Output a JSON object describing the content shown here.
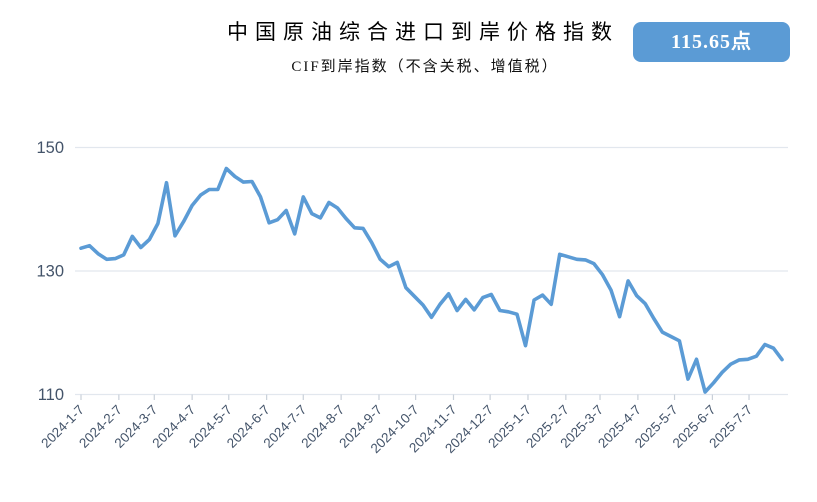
{
  "header": {
    "title": "中国原油综合进口到岸价格指数",
    "subtitle": "CIF到岸指数（不含关税、增值税）",
    "badge_value": "115.65点"
  },
  "colors": {
    "line": "#5B9BD5",
    "badge_bg": "#5B9BD5",
    "badge_text": "#FFFFFF",
    "grid": "#E2E7EE",
    "axis_label": "#44546A",
    "tick_mark": "#C9D0D9",
    "title_text": "#000000"
  },
  "chart_data": {
    "type": "line",
    "title": "中国原油综合进口到岸价格指数",
    "subtitle": "CIF到岸指数（不含关税、增值税）",
    "latest_value": 115.65,
    "unit": "点",
    "ylim": [
      110,
      150
    ],
    "grid": "horizontal-only",
    "legend": "none",
    "yticks": [
      {
        "value": 110,
        "label": "110"
      },
      {
        "value": 130,
        "label": "130"
      },
      {
        "value": 150,
        "label": "150"
      }
    ],
    "x_ticks": [
      {
        "date": "2024-01-07",
        "label": "2024-1-7"
      },
      {
        "date": "2024-02-07",
        "label": "2024-2-7"
      },
      {
        "date": "2024-03-07",
        "label": "2024-3-7"
      },
      {
        "date": "2024-04-07",
        "label": "2024-4-7"
      },
      {
        "date": "2024-05-07",
        "label": "2024-5-7"
      },
      {
        "date": "2024-06-07",
        "label": "2024-6-7"
      },
      {
        "date": "2024-07-07",
        "label": "2024-7-7"
      },
      {
        "date": "2024-08-07",
        "label": "2024-8-7"
      },
      {
        "date": "2024-09-07",
        "label": "2024-9-7"
      },
      {
        "date": "2024-10-07",
        "label": "2024-10-7"
      },
      {
        "date": "2024-11-07",
        "label": "2024-11-7"
      },
      {
        "date": "2024-12-07",
        "label": "2024-12-7"
      },
      {
        "date": "2025-01-07",
        "label": "2025-1-7"
      },
      {
        "date": "2025-02-07",
        "label": "2025-2-7"
      },
      {
        "date": "2025-03-07",
        "label": "2025-3-7"
      },
      {
        "date": "2025-04-07",
        "label": "2025-4-7"
      },
      {
        "date": "2025-05-07",
        "label": "2025-5-7"
      },
      {
        "date": "2025-06-07",
        "label": "2025-6-7"
      },
      {
        "date": "2025-07-07",
        "label": "2025-7-7"
      }
    ],
    "series": [
      {
        "name": "CIF到岸指数（不含关税、增值税）",
        "points": [
          [
            "2024-01-07",
            133.7
          ],
          [
            "2024-01-14",
            134.1
          ],
          [
            "2024-01-21",
            132.8
          ],
          [
            "2024-01-28",
            131.9
          ],
          [
            "2024-02-04",
            132.0
          ],
          [
            "2024-02-11",
            132.6
          ],
          [
            "2024-02-18",
            135.6
          ],
          [
            "2024-02-25",
            133.8
          ],
          [
            "2024-03-03",
            135.1
          ],
          [
            "2024-03-10",
            137.7
          ],
          [
            "2024-03-17",
            144.3
          ],
          [
            "2024-03-24",
            135.7
          ],
          [
            "2024-03-31",
            138.0
          ],
          [
            "2024-04-07",
            140.6
          ],
          [
            "2024-04-14",
            142.3
          ],
          [
            "2024-04-21",
            143.2
          ],
          [
            "2024-04-28",
            143.2
          ],
          [
            "2024-05-05",
            146.6
          ],
          [
            "2024-05-12",
            145.3
          ],
          [
            "2024-05-19",
            144.4
          ],
          [
            "2024-05-26",
            144.5
          ],
          [
            "2024-06-02",
            142.0
          ],
          [
            "2024-06-09",
            137.8
          ],
          [
            "2024-06-16",
            138.3
          ],
          [
            "2024-06-23",
            139.8
          ],
          [
            "2024-06-30",
            136.0
          ],
          [
            "2024-07-07",
            142.0
          ],
          [
            "2024-07-14",
            139.3
          ],
          [
            "2024-07-21",
            138.6
          ],
          [
            "2024-07-28",
            141.1
          ],
          [
            "2024-08-04",
            140.2
          ],
          [
            "2024-08-11",
            138.5
          ],
          [
            "2024-08-18",
            137.0
          ],
          [
            "2024-08-25",
            136.9
          ],
          [
            "2024-09-01",
            134.6
          ],
          [
            "2024-09-08",
            131.9
          ],
          [
            "2024-09-15",
            130.7
          ],
          [
            "2024-09-22",
            131.4
          ],
          [
            "2024-09-29",
            127.3
          ],
          [
            "2024-10-06",
            125.9
          ],
          [
            "2024-10-13",
            124.5
          ],
          [
            "2024-10-20",
            122.5
          ],
          [
            "2024-10-27",
            124.6
          ],
          [
            "2024-11-03",
            126.3
          ],
          [
            "2024-11-10",
            123.6
          ],
          [
            "2024-11-17",
            125.4
          ],
          [
            "2024-11-24",
            123.7
          ],
          [
            "2024-12-01",
            125.7
          ],
          [
            "2024-12-08",
            126.2
          ],
          [
            "2024-12-15",
            123.6
          ],
          [
            "2024-12-22",
            123.4
          ],
          [
            "2024-12-29",
            123.0
          ],
          [
            "2025-01-05",
            117.9
          ],
          [
            "2025-01-12",
            125.3
          ],
          [
            "2025-01-19",
            126.1
          ],
          [
            "2025-01-26",
            124.6
          ],
          [
            "2025-02-02",
            132.7
          ],
          [
            "2025-02-09",
            132.3
          ],
          [
            "2025-02-16",
            131.9
          ],
          [
            "2025-02-23",
            131.8
          ],
          [
            "2025-03-02",
            131.2
          ],
          [
            "2025-03-09",
            129.4
          ],
          [
            "2025-03-16",
            126.9
          ],
          [
            "2025-03-23",
            122.6
          ],
          [
            "2025-03-30",
            128.4
          ],
          [
            "2025-04-06",
            126.0
          ],
          [
            "2025-04-13",
            124.7
          ],
          [
            "2025-04-20",
            122.3
          ],
          [
            "2025-04-27",
            120.1
          ],
          [
            "2025-05-04",
            119.4
          ],
          [
            "2025-05-11",
            118.7
          ],
          [
            "2025-05-18",
            112.5
          ],
          [
            "2025-05-25",
            115.7
          ],
          [
            "2025-06-01",
            110.4
          ],
          [
            "2025-06-08",
            111.9
          ],
          [
            "2025-06-15",
            113.6
          ],
          [
            "2025-06-22",
            114.9
          ],
          [
            "2025-06-29",
            115.6
          ],
          [
            "2025-07-06",
            115.7
          ],
          [
            "2025-07-13",
            116.2
          ],
          [
            "2025-07-20",
            118.1
          ],
          [
            "2025-07-27",
            117.5
          ],
          [
            "2025-08-03",
            115.65
          ]
        ]
      }
    ]
  }
}
